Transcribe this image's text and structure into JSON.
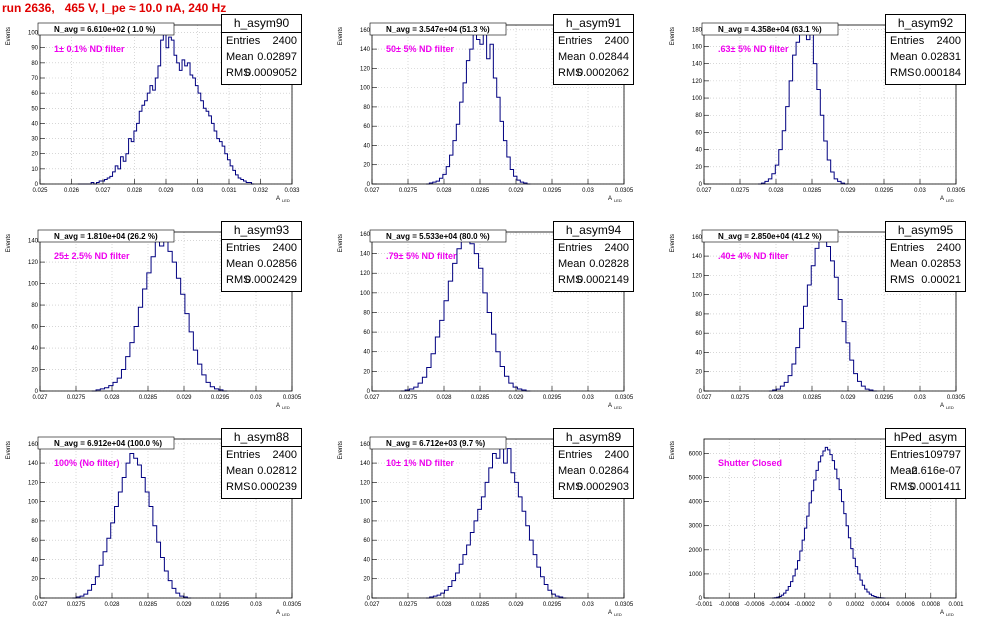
{
  "title": "run 2636,   465 V, I_pe ≈ 10.0 nA, 240 Hz",
  "colors": {
    "histogram": "#000080",
    "annotation": "#ee00ee",
    "title": "#e00000",
    "grid": "#bfbfbf"
  },
  "common": {
    "ylabel": "Events",
    "xlabel": "A",
    "xlabel_sub": "LED"
  },
  "chart_data": [
    {
      "type": "histogram",
      "name": "h_asym90",
      "navg": "N_avg = 6.610e+02 ( 1.0 %)",
      "annotation": "1± 0.1% ND filter",
      "stats": {
        "entries": "2400",
        "mean": "0.02897",
        "rms": "0.0009052"
      },
      "xlim": [
        0.025,
        0.033
      ],
      "ylim": [
        0,
        105
      ],
      "xticks": [
        "0.025",
        "0.026",
        "0.027",
        "0.028",
        "0.029",
        "0.03",
        "0.031",
        "0.032",
        "0.033"
      ],
      "yticks": [
        "0",
        "10",
        "20",
        "30",
        "40",
        "50",
        "60",
        "70",
        "80",
        "90",
        "100"
      ],
      "bins": [
        0.0262,
        0.0318
      ],
      "counts": [
        0,
        0,
        0,
        0,
        0,
        1,
        0,
        1,
        2,
        2,
        3,
        4,
        5,
        8,
        12,
        10,
        18,
        15,
        20,
        30,
        28,
        35,
        40,
        48,
        52,
        55,
        60,
        65,
        62,
        70,
        78,
        95,
        100,
        90,
        97,
        95,
        85,
        80,
        75,
        82,
        78,
        80,
        72,
        70,
        65,
        60,
        55,
        50,
        48,
        45,
        40,
        35,
        30,
        28,
        25,
        20,
        16,
        12,
        9,
        6,
        4,
        3,
        2,
        1,
        1,
        0
      ]
    },
    {
      "type": "histogram",
      "name": "h_asym91",
      "navg": "N_avg = 3.547e+04 (51.3 %)",
      "annotation": "50± 5% ND filter",
      "stats": {
        "entries": "2400",
        "mean": "0.02844",
        "rms": "0.0002062"
      },
      "xlim": [
        0.027,
        0.0305
      ],
      "ylim": [
        0,
        165
      ],
      "xticks": [
        "0.027",
        "0.0275",
        "0.028",
        "0.0285",
        "0.029",
        "0.0295",
        "0.03",
        "0.0305"
      ],
      "yticks": [
        "0",
        "20",
        "40",
        "60",
        "80",
        "100",
        "120",
        "140",
        "160"
      ],
      "bins": [
        0.02775,
        0.0292
      ],
      "counts": [
        0,
        1,
        2,
        3,
        6,
        10,
        18,
        30,
        45,
        62,
        85,
        105,
        128,
        140,
        158,
        150,
        145,
        160,
        130,
        145,
        110,
        90,
        65,
        45,
        28,
        15,
        8,
        4,
        2,
        1,
        0
      ]
    },
    {
      "type": "histogram",
      "name": "h_asym92",
      "navg": "N_avg = 4.358e+04 (63.1 %)",
      "annotation": ".63± 5% ND filter",
      "stats": {
        "entries": "2400",
        "mean": "0.02831",
        "rms": "0.000184"
      },
      "xlim": [
        0.027,
        0.0305
      ],
      "ylim": [
        0,
        185
      ],
      "xticks": [
        "0.027",
        "0.0275",
        "0.028",
        "0.0285",
        "0.029",
        "0.0295",
        "0.03",
        "0.0305"
      ],
      "yticks": [
        "0",
        "20",
        "40",
        "60",
        "80",
        "100",
        "120",
        "140",
        "160",
        "180"
      ],
      "bins": [
        0.02775,
        0.029
      ],
      "counts": [
        0,
        1,
        3,
        6,
        12,
        22,
        40,
        62,
        90,
        120,
        150,
        165,
        180,
        175,
        168,
        178,
        140,
        110,
        80,
        50,
        28,
        14,
        6,
        3,
        1,
        0
      ]
    },
    {
      "type": "histogram",
      "name": "h_asym93",
      "navg": "N_avg = 1.810e+04 (26.2 %)",
      "annotation": "25± 2.5% ND filter",
      "stats": {
        "entries": "2400",
        "mean": "0.02856",
        "rms": "0.0002429"
      },
      "xlim": [
        0.027,
        0.0305
      ],
      "ylim": [
        0,
        148
      ],
      "xticks": [
        "0.027",
        "0.0275",
        "0.028",
        "0.0285",
        "0.029",
        "0.0295",
        "0.03",
        "0.0305"
      ],
      "yticks": [
        "0",
        "20",
        "40",
        "60",
        "80",
        "100",
        "120",
        "140"
      ],
      "bins": [
        0.02772,
        0.0296
      ],
      "counts": [
        0,
        1,
        2,
        3,
        5,
        8,
        12,
        20,
        32,
        45,
        60,
        78,
        95,
        110,
        125,
        140,
        135,
        145,
        130,
        120,
        105,
        90,
        72,
        55,
        38,
        25,
        15,
        8,
        4,
        2,
        1,
        0
      ]
    },
    {
      "type": "histogram",
      "name": "h_asym94",
      "navg": "N_avg = 5.533e+04 (80.0 %)",
      "annotation": ".79± 5% ND filter",
      "stats": {
        "entries": "2400",
        "mean": "0.02828",
        "rms": "0.0002149"
      },
      "xlim": [
        0.027,
        0.0305
      ],
      "ylim": [
        0,
        162
      ],
      "xticks": [
        "0.027",
        "0.0275",
        "0.028",
        "0.0285",
        "0.029",
        "0.0295",
        "0.03",
        "0.0305"
      ],
      "yticks": [
        "0",
        "20",
        "40",
        "60",
        "80",
        "100",
        "120",
        "140",
        "160"
      ],
      "bins": [
        0.0274,
        0.0292
      ],
      "counts": [
        0,
        1,
        2,
        4,
        8,
        14,
        24,
        38,
        55,
        72,
        92,
        112,
        130,
        145,
        155,
        160,
        150,
        140,
        125,
        100,
        80,
        58,
        40,
        25,
        15,
        8,
        4,
        2,
        1,
        0
      ]
    },
    {
      "type": "histogram",
      "name": "h_asym95",
      "navg": "N_avg = 2.850e+04 (41.2 %)",
      "annotation": ".40± 4% ND filter",
      "stats": {
        "entries": "2400",
        "mean": "0.02853",
        "rms": "0.00021"
      },
      "xlim": [
        0.027,
        0.0305
      ],
      "ylim": [
        0,
        165
      ],
      "xticks": [
        "0.027",
        "0.0275",
        "0.028",
        "0.0285",
        "0.029",
        "0.0295",
        "0.03",
        "0.0305"
      ],
      "yticks": [
        "0",
        "20",
        "40",
        "60",
        "80",
        "100",
        "120",
        "140",
        "160"
      ],
      "bins": [
        0.0279,
        0.0294
      ],
      "counts": [
        0,
        1,
        2,
        5,
        9,
        16,
        28,
        45,
        65,
        88,
        110,
        130,
        148,
        160,
        155,
        150,
        135,
        118,
        95,
        72,
        50,
        32,
        18,
        10,
        5,
        2,
        1,
        0
      ]
    },
    {
      "type": "histogram",
      "name": "h_asym88",
      "navg": "N_avg = 6.912e+04 (100.0 %)",
      "annotation": "100% (No filter)",
      "stats": {
        "entries": "2400",
        "mean": "0.02812",
        "rms": "0.000239"
      },
      "xlim": [
        0.027,
        0.0305
      ],
      "ylim": [
        0,
        165
      ],
      "xticks": [
        "0.027",
        "0.0275",
        "0.028",
        "0.0285",
        "0.029",
        "0.0295",
        "0.03",
        "0.0305"
      ],
      "yticks": [
        "0",
        "20",
        "40",
        "60",
        "80",
        "100",
        "120",
        "140",
        "160"
      ],
      "bins": [
        0.02745,
        0.0291
      ],
      "counts": [
        0,
        1,
        2,
        4,
        8,
        14,
        22,
        34,
        48,
        62,
        78,
        95,
        110,
        125,
        140,
        150,
        145,
        138,
        125,
        110,
        95,
        75,
        58,
        42,
        28,
        18,
        10,
        5,
        2,
        1,
        0
      ]
    },
    {
      "type": "histogram",
      "name": "h_asym89",
      "navg": "N_avg = 6.712e+03 (9.7 %)",
      "annotation": "10± 1% ND filter",
      "stats": {
        "entries": "2400",
        "mean": "0.02864",
        "rms": "0.0002903"
      },
      "xlim": [
        0.027,
        0.0305
      ],
      "ylim": [
        0,
        165
      ],
      "xticks": [
        "0.027",
        "0.0275",
        "0.028",
        "0.0285",
        "0.029",
        "0.0295",
        "0.03",
        "0.0305"
      ],
      "yticks": [
        "0",
        "20",
        "40",
        "60",
        "80",
        "100",
        "120",
        "140",
        "160"
      ],
      "bins": [
        0.02775,
        0.0297
      ],
      "counts": [
        0,
        1,
        2,
        3,
        5,
        8,
        12,
        18,
        26,
        35,
        45,
        55,
        68,
        80,
        92,
        105,
        120,
        135,
        150,
        145,
        160,
        140,
        155,
        130,
        120,
        105,
        90,
        75,
        60,
        45,
        32,
        22,
        14,
        8,
        4,
        2,
        1,
        0
      ]
    },
    {
      "type": "histogram",
      "name": "hPed_asym",
      "navg": "",
      "annotation": "Shutter Closed",
      "stats": {
        "entries": "109797",
        "mean": "-2.616e-07",
        "rms": "0.0001411"
      },
      "xlim": [
        -0.001,
        0.001
      ],
      "ylim": [
        0,
        6600
      ],
      "xticks": [
        "-0.001",
        "-0.0008",
        "-0.0006",
        "-0.0004",
        "-0.0002",
        "0",
        "0.0002",
        "0.0004",
        "0.0006",
        "0.0008",
        "0.001"
      ],
      "yticks": [
        "0",
        "1000",
        "2000",
        "3000",
        "4000",
        "5000",
        "6000"
      ],
      "bins": [
        -0.00046,
        0.00044
      ],
      "counts": [
        0,
        10,
        30,
        60,
        120,
        200,
        320,
        480,
        680,
        920,
        1200,
        1550,
        1950,
        2400,
        2900,
        3400,
        3950,
        4450,
        4900,
        5300,
        5650,
        5900,
        6100,
        6250,
        6150,
        5950,
        5700,
        5350,
        4950,
        4500,
        4000,
        3500,
        3000,
        2500,
        2050,
        1650,
        1300,
        1000,
        740,
        530,
        370,
        250,
        160,
        100,
        60,
        30,
        15,
        5,
        0
      ]
    }
  ]
}
